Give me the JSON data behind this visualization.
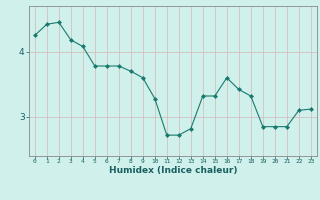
{
  "x": [
    0,
    1,
    2,
    3,
    4,
    5,
    6,
    7,
    8,
    9,
    10,
    11,
    12,
    13,
    14,
    15,
    16,
    17,
    18,
    19,
    20,
    21,
    22,
    23
  ],
  "y": [
    4.25,
    4.42,
    4.45,
    4.18,
    4.08,
    3.78,
    3.78,
    3.78,
    3.7,
    3.6,
    3.28,
    2.72,
    2.72,
    2.82,
    3.32,
    3.32,
    3.6,
    3.42,
    3.32,
    2.85,
    2.85,
    2.85,
    3.1,
    3.12
  ],
  "line_color": "#1a7a6e",
  "marker": "D",
  "marker_size": 2,
  "bg_color": "#cff0eb",
  "grid_color_v": "#d4b8b8",
  "grid_color_h": "#c8a8a8",
  "xlabel": "Humidex (Indice chaleur)",
  "yticks": [
    3,
    4
  ],
  "ylim": [
    2.4,
    4.7
  ],
  "xlim": [
    -0.5,
    23.5
  ],
  "tick_color": "#1a7a6e",
  "label_color": "#1a6060"
}
